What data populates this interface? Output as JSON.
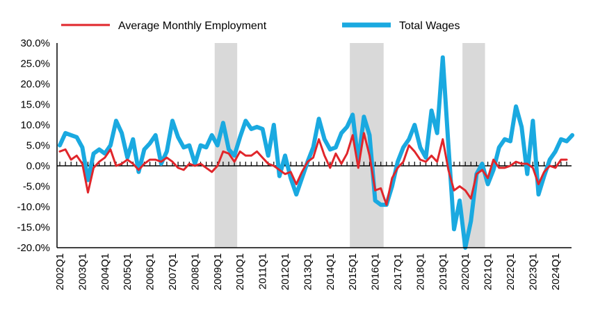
{
  "chart_data": {
    "type": "line",
    "title": "",
    "xlabel": "",
    "ylabel": "",
    "ylim": [
      -20,
      30
    ],
    "y_ticks": [
      "30.0%",
      "25.0%",
      "20.0%",
      "15.0%",
      "10.0%",
      "5.0%",
      "0.0%",
      "-5.0%",
      "-10.0%",
      "-15.0%",
      "-20.0%"
    ],
    "x_tick_labels": [
      "2002Q1",
      "2003Q1",
      "2004Q1",
      "2005Q1",
      "2006Q1",
      "2007Q1",
      "2008Q1",
      "2009Q1",
      "2010Q1",
      "2011Q1",
      "2012Q1",
      "2013Q1",
      "2014Q1",
      "2015Q1",
      "2016Q1",
      "2017Q1",
      "2018Q1",
      "2019Q1",
      "2020Q1",
      "2021Q1",
      "2022Q1",
      "2023Q1",
      "2024Q1"
    ],
    "first_quarter": "2002Q1",
    "legend_position": "top",
    "grid": false,
    "shaded_periods": [
      {
        "start": "2009Q1",
        "end": "2009Q4"
      },
      {
        "start": "2015Q1",
        "end": "2016Q2"
      },
      {
        "start": "2020Q1",
        "end": "2020Q4"
      }
    ],
    "series": [
      {
        "name": "Average Monthly Employment",
        "color": "#e0262b",
        "values": [
          3.5,
          4.0,
          1.5,
          2.5,
          0.5,
          -6.5,
          -0.5,
          1.0,
          2.0,
          4.0,
          0.0,
          0.5,
          1.5,
          0.5,
          -1.0,
          0.5,
          1.5,
          1.5,
          1.0,
          2.0,
          1.0,
          -0.5,
          -1.0,
          0.5,
          0.0,
          0.5,
          -0.5,
          -1.5,
          0.0,
          3.5,
          3.0,
          1.0,
          3.5,
          2.5,
          2.5,
          3.5,
          2.0,
          0.5,
          0.0,
          -1.0,
          -2.0,
          -1.5,
          -4.5,
          -1.5,
          1.0,
          2.0,
          6.5,
          2.5,
          -0.5,
          3.0,
          0.5,
          3.0,
          7.5,
          -0.5,
          8.0,
          2.5,
          -6.0,
          -5.5,
          -9.5,
          -3.0,
          -0.5,
          1.0,
          5.0,
          3.5,
          1.5,
          1.0,
          2.5,
          1.0,
          6.5,
          -1.0,
          -6.0,
          -5.0,
          -6.0,
          -8.0,
          -2.0,
          -1.0,
          -3.0,
          1.5,
          -0.5,
          -0.5,
          0.0,
          1.0,
          0.5,
          0.5,
          -0.5,
          -4.5,
          -1.5,
          0.0,
          -0.5,
          1.5,
          1.5
        ]
      },
      {
        "name": "Total Wages",
        "color": "#1aa9e0",
        "values": [
          5.0,
          8.0,
          7.5,
          7.0,
          4.5,
          -3.5,
          3.0,
          4.0,
          3.0,
          5.0,
          11.0,
          8.0,
          2.0,
          6.5,
          -1.5,
          4.0,
          5.5,
          7.5,
          0.5,
          3.5,
          11.0,
          7.0,
          4.5,
          5.0,
          0.5,
          5.0,
          4.5,
          7.5,
          5.0,
          10.5,
          4.0,
          2.5,
          7.0,
          11.0,
          9.0,
          9.5,
          9.0,
          2.5,
          10.0,
          -2.5,
          2.5,
          -3.0,
          -7.0,
          -3.0,
          1.0,
          4.5,
          11.5,
          6.5,
          4.0,
          4.5,
          8.0,
          9.5,
          12.5,
          1.0,
          12.0,
          7.5,
          -8.5,
          -9.5,
          -9.5,
          -5.0,
          1.0,
          4.5,
          6.5,
          10.0,
          4.5,
          2.0,
          13.5,
          8.0,
          26.5,
          5.0,
          -15.5,
          -8.5,
          -20.0,
          -13.5,
          -2.0,
          0.5,
          -4.5,
          -1.0,
          4.5,
          6.5,
          6.0,
          14.5,
          9.5,
          -2.0,
          11.0,
          -7.0,
          -2.5,
          1.5,
          3.5,
          6.5,
          6.0,
          7.5
        ]
      }
    ]
  }
}
